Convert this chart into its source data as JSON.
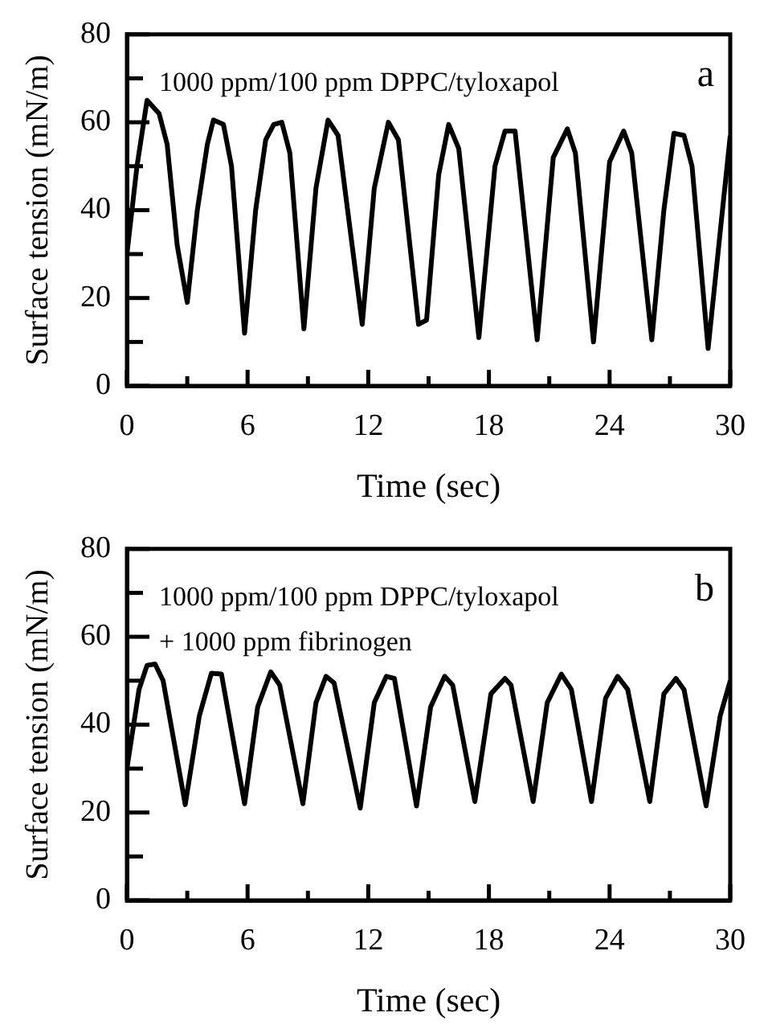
{
  "chart_data": [
    {
      "type": "line",
      "xlabel": "Time (sec)",
      "ylabel": "Surface tension (mN/m)",
      "annotations": [
        "1000 ppm/100 ppm DPPC/tyloxapol",
        "a"
      ],
      "x": [
        0,
        0.5,
        1.0,
        1.6,
        2.0,
        2.5,
        3.0,
        3.5,
        4.0,
        4.3,
        4.8,
        5.2,
        5.85,
        6.4,
        6.9,
        7.3,
        7.7,
        8.1,
        8.8,
        9.4,
        10.0,
        10.5,
        11.7,
        12.3,
        13.0,
        13.5,
        14.5,
        14.9,
        15.5,
        16.0,
        16.5,
        17.5,
        18.3,
        18.8,
        19.3,
        20.4,
        21.2,
        21.9,
        22.3,
        23.2,
        24.0,
        24.7,
        25.1,
        26.1,
        26.7,
        27.2,
        27.7,
        28.1,
        28.9,
        29.5,
        30
      ],
      "series": [
        {
          "color": "#000000",
          "values": [
            30,
            50,
            65,
            62,
            55,
            32,
            19,
            40,
            55,
            60.5,
            59.5,
            50,
            12,
            40,
            56,
            59.5,
            60,
            53,
            13,
            45,
            60.5,
            57,
            14,
            45,
            60,
            56,
            14,
            15,
            48,
            59.5,
            54,
            11,
            50,
            58,
            58,
            10.5,
            52,
            58.5,
            53,
            10,
            51,
            58,
            53,
            10.5,
            40,
            57.5,
            57,
            50,
            8.5,
            35,
            57
          ]
        }
      ],
      "xlim": [
        0,
        30
      ],
      "xticks": [
        0,
        {
          "value": 3,
          "label": null
        },
        6,
        {
          "value": 9,
          "label": null
        },
        12,
        {
          "value": 15,
          "label": null
        },
        18,
        {
          "value": 21,
          "label": null
        },
        24,
        {
          "value": 27,
          "label": null
        },
        30
      ],
      "ylim": [
        0,
        80
      ],
      "yticks": [
        0,
        {
          "value": 10,
          "label": null
        },
        20,
        {
          "value": 30,
          "label": null
        },
        40,
        {
          "value": 50,
          "label": null
        },
        60,
        {
          "value": 70,
          "label": null
        },
        80
      ],
      "grid": false,
      "legend": false,
      "line_style": "solid",
      "marker": "none"
    },
    {
      "type": "line",
      "xlabel": "Time (sec)",
      "ylabel": "Surface tension (mN/m)",
      "annotations": [
        "1000 ppm/100 ppm DPPC/tyloxapol",
        "+ 1000 ppm fibrinogen",
        "b"
      ],
      "x": [
        0,
        0.6,
        1.0,
        1.4,
        1.8,
        2.9,
        3.6,
        4.2,
        4.7,
        5.85,
        6.5,
        7.15,
        7.6,
        8.75,
        9.4,
        9.9,
        10.3,
        11.6,
        12.3,
        12.9,
        13.3,
        14.4,
        15.1,
        15.8,
        16.2,
        17.3,
        18.1,
        18.8,
        19.1,
        20.2,
        20.9,
        21.6,
        22.1,
        23.1,
        23.8,
        24.4,
        24.9,
        26.0,
        26.7,
        27.3,
        27.7,
        28.8,
        29.5,
        30
      ],
      "series": [
        {
          "color": "#000000",
          "values": [
            30,
            48,
            53.5,
            53.8,
            50,
            21.8,
            42,
            51.7,
            51.5,
            22,
            44,
            52,
            49,
            22,
            45,
            51,
            49.5,
            21,
            45,
            51,
            50.5,
            21.5,
            44,
            51,
            49,
            22.5,
            47,
            50.5,
            49,
            22.5,
            45,
            51.5,
            48,
            22.5,
            46,
            51,
            48,
            22.5,
            47,
            50.5,
            48,
            21.5,
            42,
            50
          ]
        }
      ],
      "xlim": [
        0,
        30
      ],
      "xticks": [
        0,
        {
          "value": 3,
          "label": null
        },
        6,
        {
          "value": 9,
          "label": null
        },
        12,
        {
          "value": 15,
          "label": null
        },
        18,
        {
          "value": 21,
          "label": null
        },
        24,
        {
          "value": 27,
          "label": null
        },
        30
      ],
      "ylim": [
        0,
        80
      ],
      "yticks": [
        0,
        {
          "value": 10,
          "label": null
        },
        20,
        {
          "value": 30,
          "label": null
        },
        40,
        {
          "value": 50,
          "label": null
        },
        60,
        {
          "value": 70,
          "label": null
        },
        80
      ],
      "grid": false,
      "legend": false,
      "line_style": "solid",
      "marker": "none"
    }
  ]
}
